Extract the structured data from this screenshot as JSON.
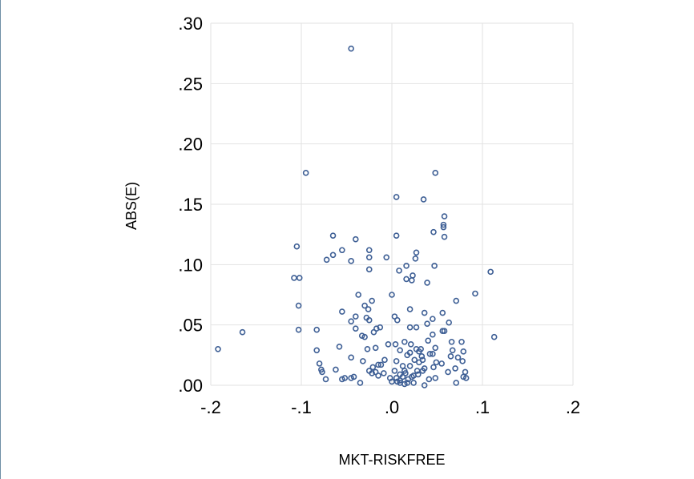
{
  "chart_data": {
    "type": "scatter",
    "xlabel": "MKT-RISKFREE",
    "ylabel": "ABS(E)",
    "xlim": [
      -0.2,
      0.2
    ],
    "ylim": [
      0.0,
      0.3
    ],
    "x_ticks": [
      -0.2,
      -0.1,
      0.0,
      0.1,
      0.2
    ],
    "x_tick_labels": [
      "-.2",
      "-.1",
      ".0",
      ".1",
      ".2"
    ],
    "y_ticks": [
      0.0,
      0.05,
      0.1,
      0.15,
      0.2,
      0.25,
      0.3
    ],
    "y_tick_labels": [
      ".00",
      ".05",
      ".10",
      ".15",
      ".20",
      ".25",
      ".30"
    ],
    "grid": true,
    "marker_color": "#3e5f95",
    "points": [
      [
        -0.192,
        0.03
      ],
      [
        -0.165,
        0.044
      ],
      [
        -0.045,
        0.279
      ],
      [
        -0.095,
        0.176
      ],
      [
        0.048,
        0.176
      ],
      [
        0.005,
        0.156
      ],
      [
        0.035,
        0.154
      ],
      [
        0.058,
        0.14
      ],
      [
        0.057,
        0.133
      ],
      [
        0.057,
        0.131
      ],
      [
        0.046,
        0.127
      ],
      [
        0.058,
        0.123
      ],
      [
        -0.065,
        0.124
      ],
      [
        0.005,
        0.124
      ],
      [
        -0.04,
        0.121
      ],
      [
        -0.105,
        0.115
      ],
      [
        -0.055,
        0.112
      ],
      [
        -0.025,
        0.112
      ],
      [
        0.027,
        0.11
      ],
      [
        -0.065,
        0.108
      ],
      [
        -0.072,
        0.104
      ],
      [
        -0.025,
        0.106
      ],
      [
        -0.006,
        0.106
      ],
      [
        0.026,
        0.105
      ],
      [
        -0.045,
        0.103
      ],
      [
        0.016,
        0.099
      ],
      [
        0.047,
        0.099
      ],
      [
        -0.025,
        0.096
      ],
      [
        0.008,
        0.095
      ],
      [
        0.109,
        0.094
      ],
      [
        0.023,
        0.091
      ],
      [
        0.016,
        0.088
      ],
      [
        0.022,
        0.087
      ],
      [
        -0.108,
        0.089
      ],
      [
        -0.102,
        0.089
      ],
      [
        0.039,
        0.085
      ],
      [
        0.092,
        0.076
      ],
      [
        -0.037,
        0.075
      ],
      [
        0.0,
        0.075
      ],
      [
        -0.022,
        0.07
      ],
      [
        0.071,
        0.07
      ],
      [
        -0.103,
        0.066
      ],
      [
        -0.03,
        0.066
      ],
      [
        -0.026,
        0.063
      ],
      [
        0.02,
        0.063
      ],
      [
        -0.055,
        0.061
      ],
      [
        0.056,
        0.06
      ],
      [
        0.036,
        0.06
      ],
      [
        -0.04,
        0.057
      ],
      [
        0.003,
        0.057
      ],
      [
        -0.028,
        0.056
      ],
      [
        -0.045,
        0.053
      ],
      [
        0.006,
        0.054
      ],
      [
        -0.025,
        0.054
      ],
      [
        0.045,
        0.055
      ],
      [
        0.063,
        0.052
      ],
      [
        0.039,
        0.051
      ],
      [
        0.02,
        0.048
      ],
      [
        0.027,
        0.048
      ],
      [
        -0.04,
        0.047
      ],
      [
        -0.017,
        0.047
      ],
      [
        -0.013,
        0.048
      ],
      [
        -0.103,
        0.046
      ],
      [
        -0.083,
        0.046
      ],
      [
        -0.02,
        0.044
      ],
      [
        0.056,
        0.045
      ],
      [
        0.058,
        0.045
      ],
      [
        0.113,
        0.04
      ],
      [
        -0.033,
        0.041
      ],
      [
        -0.03,
        0.04
      ],
      [
        0.045,
        0.042
      ],
      [
        0.077,
        0.036
      ],
      [
        0.066,
        0.036
      ],
      [
        0.04,
        0.037
      ],
      [
        0.014,
        0.036
      ],
      [
        -0.004,
        0.034
      ],
      [
        -0.058,
        0.032
      ],
      [
        -0.018,
        0.031
      ],
      [
        0.004,
        0.034
      ],
      [
        0.021,
        0.034
      ],
      [
        -0.027,
        0.03
      ],
      [
        0.027,
        0.03
      ],
      [
        0.032,
        0.03
      ],
      [
        0.048,
        0.031
      ],
      [
        -0.083,
        0.029
      ],
      [
        0.009,
        0.029
      ],
      [
        0.03,
        0.028
      ],
      [
        0.079,
        0.028
      ],
      [
        0.067,
        0.029
      ],
      [
        0.045,
        0.026
      ],
      [
        -0.045,
        0.023
      ],
      [
        0.017,
        0.025
      ],
      [
        0.02,
        0.027
      ],
      [
        0.033,
        0.024
      ],
      [
        0.042,
        0.026
      ],
      [
        0.065,
        0.024
      ],
      [
        0.073,
        0.023
      ],
      [
        -0.032,
        0.02
      ],
      [
        -0.008,
        0.021
      ],
      [
        0.025,
        0.021
      ],
      [
        0.034,
        0.021
      ],
      [
        0.005,
        0.02
      ],
      [
        0.078,
        0.02
      ],
      [
        0.03,
        0.019
      ],
      [
        0.049,
        0.019
      ],
      [
        0.055,
        0.018
      ],
      [
        -0.08,
        0.018
      ],
      [
        -0.015,
        0.017
      ],
      [
        -0.012,
        0.017
      ],
      [
        0.012,
        0.016
      ],
      [
        0.02,
        0.016
      ],
      [
        0.046,
        0.015
      ],
      [
        0.036,
        0.014
      ],
      [
        0.07,
        0.014
      ],
      [
        -0.078,
        0.013
      ],
      [
        -0.062,
        0.013
      ],
      [
        -0.025,
        0.012
      ],
      [
        -0.018,
        0.011
      ],
      [
        0.003,
        0.012
      ],
      [
        0.014,
        0.012
      ],
      [
        0.028,
        0.012
      ],
      [
        0.034,
        0.012
      ],
      [
        0.062,
        0.011
      ],
      [
        -0.022,
        0.01
      ],
      [
        -0.009,
        0.01
      ],
      [
        0.009,
        0.009
      ],
      [
        0.029,
        0.009
      ],
      [
        -0.077,
        0.011
      ],
      [
        0.081,
        0.011
      ],
      [
        -0.015,
        0.008
      ],
      [
        0.022,
        0.007
      ],
      [
        0.048,
        0.006
      ],
      [
        0.079,
        0.007
      ],
      [
        -0.073,
        0.005
      ],
      [
        -0.042,
        0.007
      ],
      [
        0.005,
        0.006
      ],
      [
        0.012,
        0.007
      ],
      [
        -0.052,
        0.006
      ],
      [
        -0.045,
        0.006
      ],
      [
        -0.002,
        0.006
      ],
      [
        0.018,
        0.005
      ],
      [
        0.041,
        0.005
      ],
      [
        -0.055,
        0.005
      ],
      [
        0.009,
        0.004
      ],
      [
        0.082,
        0.006
      ],
      [
        -0.035,
        0.002
      ],
      [
        0.0,
        0.003
      ],
      [
        0.009,
        0.002
      ],
      [
        0.017,
        0.002
      ],
      [
        0.024,
        0.002
      ],
      [
        0.036,
        0.0
      ],
      [
        0.071,
        0.002
      ],
      [
        0.014,
        0.001
      ],
      [
        0.006,
        0.003
      ],
      [
        0.024,
        0.008
      ],
      [
        -0.021,
        0.015
      ],
      [
        0.015,
        0.01
      ]
    ]
  }
}
